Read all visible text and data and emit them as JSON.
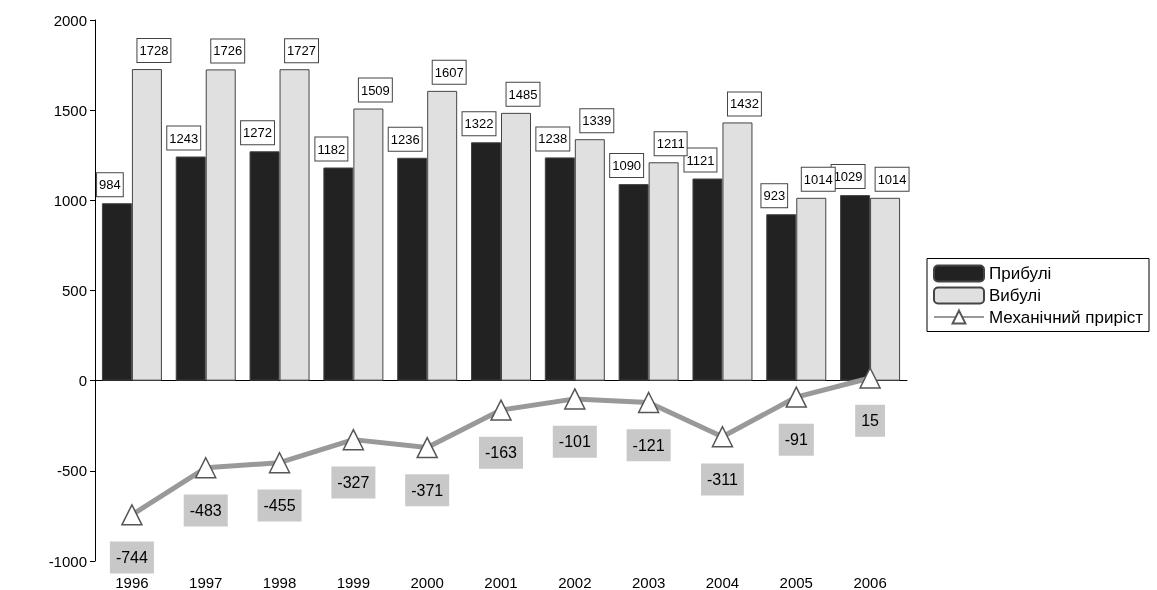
{
  "chart_data": {
    "type": "bar",
    "categories": [
      "1996",
      "1997",
      "1998",
      "1999",
      "2000",
      "2001",
      "2002",
      "2003",
      "2004",
      "2005",
      "2006"
    ],
    "series": [
      {
        "name": "Прибулі",
        "color": "#222222",
        "values": [
          984,
          1243,
          1272,
          1182,
          1236,
          1322,
          1238,
          1090,
          1121,
          923,
          1029
        ]
      },
      {
        "name": "Вибулі",
        "color": "#e0e0e0",
        "values": [
          1728,
          1726,
          1727,
          1509,
          1607,
          1485,
          1339,
          1211,
          1432,
          1014,
          1014
        ]
      },
      {
        "name": "Механічний приріст",
        "type": "line",
        "color": "#999999",
        "values": [
          -744,
          -483,
          -455,
          -327,
          -371,
          -163,
          -101,
          -121,
          -311,
          -91,
          15
        ]
      }
    ],
    "ylim": [
      -1000,
      2000
    ],
    "yticks": [
      -1000,
      -500,
      0,
      500,
      1000,
      1500,
      2000
    ],
    "legend": "right",
    "marker": "triangle",
    "data_labels": true
  }
}
